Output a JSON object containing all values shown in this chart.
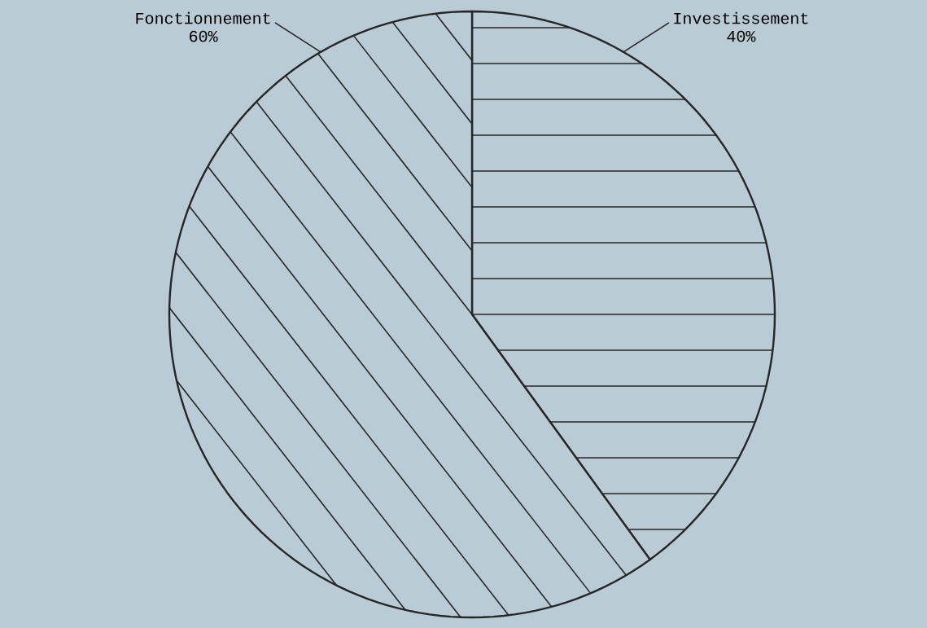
{
  "chart_data": {
    "type": "pie",
    "categories": [
      "Investissement",
      "Fonctionnement"
    ],
    "values": [
      40,
      60
    ],
    "value_labels": [
      "40%",
      "60%"
    ],
    "colors": [
      "#b9cbd4",
      "#b9cbd4"
    ],
    "legend": false
  }
}
